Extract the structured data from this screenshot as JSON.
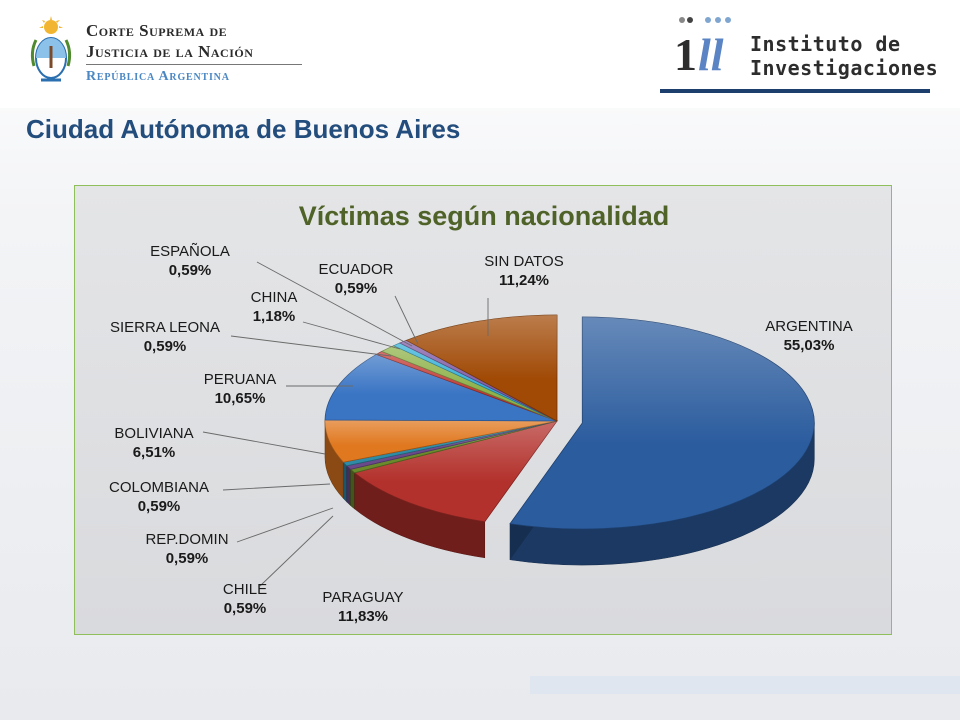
{
  "header": {
    "court_line1": "Corte Suprema de",
    "court_line2": "Justicia de la Nación",
    "court_sub": "República Argentina",
    "institute_line1": "Instituto de",
    "institute_line2": "Investigaciones"
  },
  "page_title": "Ciudad Autónoma de Buenos Aires",
  "chart_data": {
    "type": "pie",
    "title": "Víctimas según nacionalidad",
    "slices": [
      {
        "name": "ARGENTINA",
        "value": 55.03,
        "label": "55,03%",
        "color": "#2b5c9e",
        "exploded": true
      },
      {
        "name": "PARAGUAY",
        "value": 11.83,
        "label": "11,83%",
        "color": "#b3312c"
      },
      {
        "name": "CHILE",
        "value": 0.59,
        "label": "0,59%",
        "color": "#6a8a2c"
      },
      {
        "name": "REP.DOMIN",
        "value": 0.59,
        "label": "0,59%",
        "color": "#6b4a8c"
      },
      {
        "name": "COLOMBIANA",
        "value": 0.59,
        "label": "0,59%",
        "color": "#2f8ca6"
      },
      {
        "name": "BOLIVIANA",
        "value": 6.51,
        "label": "6,51%",
        "color": "#e0781f"
      },
      {
        "name": "PERUANA",
        "value": 10.65,
        "label": "10,65%",
        "color": "#3a75c4"
      },
      {
        "name": "SIERRA LEONA",
        "value": 0.59,
        "label": "0,59%",
        "color": "#c23b36"
      },
      {
        "name": "CHINA",
        "value": 1.18,
        "label": "1,18%",
        "color": "#8fb24a"
      },
      {
        "name": "ECUADOR",
        "value": 0.59,
        "label": "0,59%",
        "color": "#35b0d6"
      },
      {
        "name": "ESPAÑOLA",
        "value": 0.59,
        "label": "0,59%",
        "color": "#7f5ca8"
      },
      {
        "name": "SIN DATOS",
        "value": 11.24,
        "label": "11,24%",
        "color": "#a14a06"
      }
    ],
    "label_placement": "outside with leader lines"
  }
}
